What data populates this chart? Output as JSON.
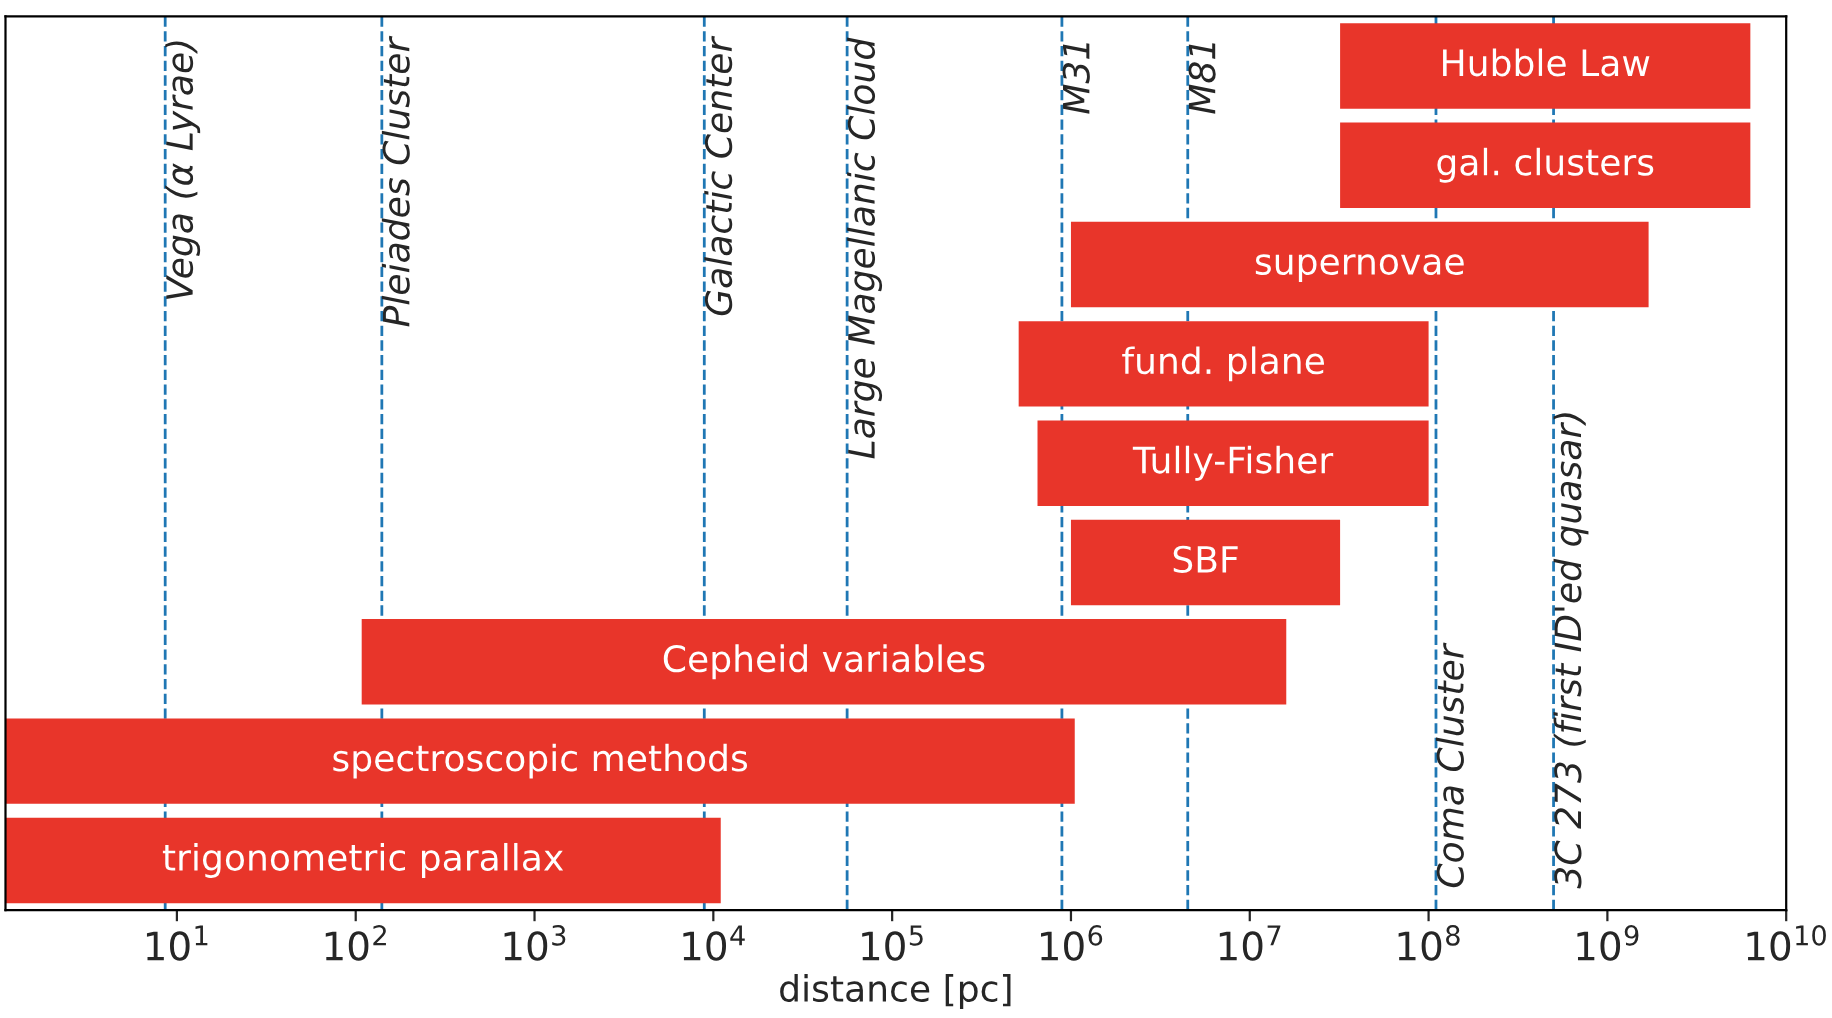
{
  "chart_data": {
    "type": "bar",
    "orientation": "horizontal",
    "xlabel": "distance [pc]",
    "log": "x",
    "grid": false,
    "legend": false,
    "tick_labels": "x",
    "data_labels": false,
    "categories": [
      "Hubble Law",
      "gal. clusters",
      "supernovae",
      "fund. plane",
      "Tully-Fisher",
      "SBF",
      "Cepheid variables",
      "spectroscopic methods",
      "trigonometric parallax"
    ],
    "base": [
      32000000.0,
      32000000.0,
      1000000.0,
      510000.0,
      650000.0,
      1000000.0,
      108,
      1.1,
      1.1
    ],
    "values": [
      6270000000.0,
      6270000000.0,
      1699000000.0,
      99500000.0,
      99400000.0,
      31000000.0,
      16000000.0,
      1050000.0,
      11000.0
    ],
    "color": "#e8352a",
    "xlim": [
      1.1,
      10000000000.0
    ],
    "xticks": [
      {
        "value": 10,
        "label": "10$^{1}$"
      },
      {
        "value": 100,
        "label": "10$^{2}$"
      },
      {
        "value": 1000,
        "label": "10$^{3}$"
      },
      {
        "value": 10000,
        "label": "10$^{4}$"
      },
      {
        "value": 100000,
        "label": "10$^{5}$"
      },
      {
        "value": 1000000,
        "label": "10$^{6}$"
      },
      {
        "value": 10000000,
        "label": "10$^{7}$"
      },
      {
        "value": 100000000,
        "label": "10$^{8}$"
      },
      {
        "value": 1000000000,
        "label": "10$^{9}$"
      },
      {
        "value": 10000000000,
        "label": "10$^{10}$"
      }
    ],
    "ref_lines": [
      {
        "axis": "x",
        "value": 8.6,
        "label": "Vega (α Lyrae)",
        "color": "#1f77b4",
        "line_style": "dashed"
      },
      {
        "axis": "x",
        "value": 140,
        "label": "Pleiades Cluster",
        "color": "#1f77b4",
        "line_style": "dashed"
      },
      {
        "axis": "x",
        "value": 8900,
        "label": "Galactic Center",
        "color": "#1f77b4",
        "line_style": "dashed"
      },
      {
        "axis": "x",
        "value": 56000,
        "label": "Large Magellanic Cloud",
        "color": "#1f77b4",
        "line_style": "dashed"
      },
      {
        "axis": "x",
        "value": 890000,
        "label": "M31",
        "color": "#1f77b4",
        "line_style": "dashed"
      },
      {
        "axis": "x",
        "value": 4500000,
        "label": "M81",
        "color": "#1f77b4",
        "line_style": "dashed"
      },
      {
        "axis": "x",
        "value": 110000000,
        "label": "Coma Cluster",
        "color": "#1f77b4",
        "line_style": "dashed"
      },
      {
        "axis": "x",
        "value": 500000000,
        "label": "3C 273 (first ID'ed quasar)",
        "color": "#1f77b4",
        "line_style": "dashed"
      }
    ]
  }
}
